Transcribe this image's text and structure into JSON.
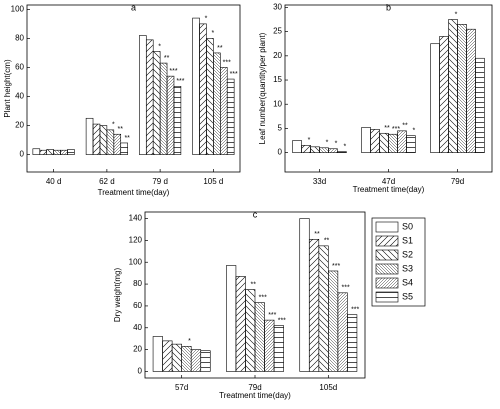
{
  "chart_data": [
    {
      "type": "bar",
      "title": "a",
      "x_label": "Treatment time(day)",
      "y_label": "Plant height(cm)",
      "categories": [
        "40 d",
        "62 d",
        "79 d",
        "105 d"
      ],
      "ylim": [
        -12,
        103
      ],
      "yticks": [
        0,
        20,
        40,
        60,
        80,
        100
      ],
      "series": [
        {
          "hatch": "none",
          "values": [
            4,
            25,
            82,
            94
          ],
          "significance": [
            null,
            null,
            null,
            null
          ]
        },
        {
          "hatch": "fwd",
          "values": [
            3,
            21,
            79,
            90
          ],
          "significance": [
            null,
            null,
            null,
            "*"
          ]
        },
        {
          "hatch": "back",
          "values": [
            3.5,
            20,
            71,
            80
          ],
          "significance": [
            null,
            null,
            "*",
            "*"
          ]
        },
        {
          "hatch": "back-dense",
          "values": [
            3,
            17,
            63,
            70
          ],
          "significance": [
            null,
            "*",
            "**",
            "**"
          ]
        },
        {
          "hatch": "fwd-dense",
          "values": [
            3,
            14,
            54,
            60
          ],
          "significance": [
            null,
            "**",
            "***",
            "***"
          ]
        },
        {
          "hatch": "horiz",
          "values": [
            3.5,
            8,
            47,
            52
          ],
          "significance": [
            null,
            "**",
            "***",
            "***"
          ]
        }
      ]
    },
    {
      "type": "bar",
      "title": "b",
      "x_label": "Treatment time(day)",
      "y_label": "Leaf number(quantity/per plant)",
      "categories": [
        "33d",
        "47d",
        "79d"
      ],
      "ylim": [
        -4,
        30.5
      ],
      "yticks": [
        0,
        5,
        10,
        15,
        20,
        25,
        30
      ],
      "series": [
        {
          "hatch": "none",
          "values": [
            2.5,
            5.2,
            22.5
          ],
          "significance": [
            null,
            null,
            null
          ]
        },
        {
          "hatch": "fwd",
          "values": [
            1.5,
            4.8,
            24
          ],
          "significance": [
            "*",
            null,
            null
          ]
        },
        {
          "hatch": "back",
          "values": [
            1.2,
            4,
            27.5
          ],
          "significance": [
            null,
            "**",
            "*"
          ]
        },
        {
          "hatch": "back-dense",
          "values": [
            1.0,
            3.8,
            26.5
          ],
          "significance": [
            "*",
            "***",
            null
          ]
        },
        {
          "hatch": "fwd-dense",
          "values": [
            0.8,
            4.5,
            25.5
          ],
          "significance": [
            "*",
            "**",
            null
          ]
        },
        {
          "hatch": "horiz",
          "values": [
            0.2,
            3.5,
            19.5
          ],
          "significance": [
            "*",
            "*",
            null
          ]
        }
      ]
    },
    {
      "type": "bar",
      "title": "c",
      "x_label": "Treatment time(day)",
      "y_label": "Dry weight(mg)",
      "categories": [
        "57d",
        "79d",
        "105d"
      ],
      "ylim": [
        -6,
        146
      ],
      "yticks": [
        0,
        20,
        40,
        60,
        80,
        100,
        120,
        140
      ],
      "legend": "right",
      "series": [
        {
          "name": "S0",
          "hatch": "none",
          "values": [
            32,
            97,
            140
          ],
          "significance": [
            null,
            null,
            null
          ]
        },
        {
          "name": "S1",
          "hatch": "fwd",
          "values": [
            28,
            87,
            121
          ],
          "significance": [
            null,
            null,
            "**"
          ]
        },
        {
          "name": "S2",
          "hatch": "back",
          "values": [
            25,
            75,
            115
          ],
          "significance": [
            null,
            "**",
            "**"
          ]
        },
        {
          "name": "S3",
          "hatch": "back-dense",
          "values": [
            23,
            63,
            92
          ],
          "significance": [
            "*",
            "***",
            "***"
          ]
        },
        {
          "name": "S4",
          "hatch": "fwd-dense",
          "values": [
            20,
            47,
            72
          ],
          "significance": [
            null,
            "***",
            "***"
          ]
        },
        {
          "name": "S5",
          "hatch": "horiz",
          "values": [
            19,
            42,
            52
          ],
          "significance": [
            null,
            "***",
            "***"
          ]
        }
      ]
    }
  ]
}
